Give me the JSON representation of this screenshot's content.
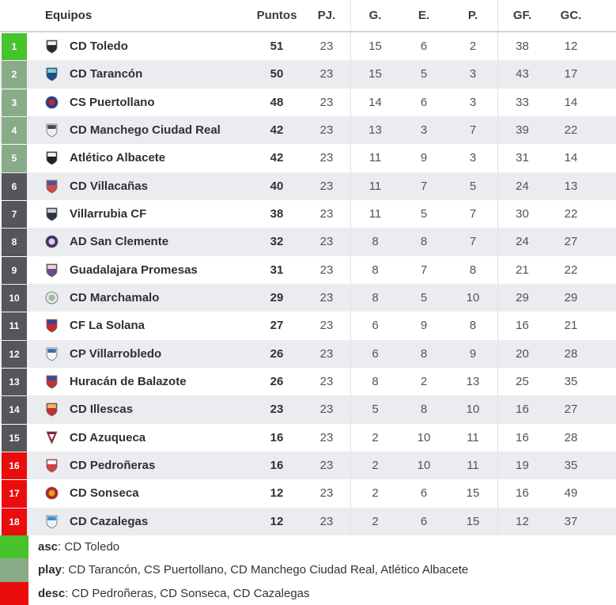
{
  "header": {
    "equipos": "Equipos",
    "puntos": "Puntos",
    "pj": "PJ.",
    "g": "G.",
    "e": "E.",
    "p": "P.",
    "gf": "GF.",
    "gc": "GC."
  },
  "colors": {
    "asc": "#47c32d",
    "play": "#8aab88",
    "mid": "#55555b",
    "desc": "#eb0d0e",
    "row_alt": "#ebecef",
    "border": "#e2e2e6"
  },
  "rows": [
    {
      "pos": 1,
      "team": "CD Toledo",
      "zone": "asc",
      "icon": {
        "shape": "shield",
        "c1": "#2b2b2b",
        "c2": "#f2f2f2"
      },
      "puntos": 51,
      "pj": 23,
      "g": 15,
      "e": 6,
      "p": 2,
      "gf": 38,
      "gc": 12
    },
    {
      "pos": 2,
      "team": "CD Tarancón",
      "zone": "play",
      "icon": {
        "shape": "shield",
        "c1": "#1d4e89",
        "c2": "#7fd1c8"
      },
      "puntos": 50,
      "pj": 23,
      "g": 15,
      "e": 5,
      "p": 3,
      "gf": 43,
      "gc": 17
    },
    {
      "pos": 3,
      "team": "CS Puertollano",
      "zone": "play",
      "icon": {
        "shape": "circle",
        "c1": "#1d3f8f",
        "c2": "#c42430"
      },
      "puntos": 48,
      "pj": 23,
      "g": 14,
      "e": 6,
      "p": 3,
      "gf": 33,
      "gc": 14
    },
    {
      "pos": 4,
      "team": "CD Manchego Ciudad Real",
      "zone": "play",
      "icon": {
        "shape": "shield",
        "c1": "#eef0f2",
        "c2": "#4a4a52"
      },
      "puntos": 42,
      "pj": 23,
      "g": 13,
      "e": 3,
      "p": 7,
      "gf": 39,
      "gc": 22
    },
    {
      "pos": 5,
      "team": "Atlético Albacete",
      "zone": "play",
      "icon": {
        "shape": "shield",
        "c1": "#222222",
        "c2": "#f5f5f5"
      },
      "puntos": 42,
      "pj": 23,
      "g": 11,
      "e": 9,
      "p": 3,
      "gf": 31,
      "gc": 14
    },
    {
      "pos": 6,
      "team": "CD Villacañas",
      "zone": "mid",
      "icon": {
        "shape": "shield",
        "c1": "#d04848",
        "c2": "#3c55a5"
      },
      "puntos": 40,
      "pj": 23,
      "g": 11,
      "e": 7,
      "p": 5,
      "gf": 24,
      "gc": 13
    },
    {
      "pos": 7,
      "team": "Villarrubia CF",
      "zone": "mid",
      "icon": {
        "shape": "shield",
        "c1": "#2e3440",
        "c2": "#cfd4dc"
      },
      "puntos": 38,
      "pj": 23,
      "g": 11,
      "e": 5,
      "p": 7,
      "gf": 30,
      "gc": 22
    },
    {
      "pos": 8,
      "team": "AD San Clemente",
      "zone": "mid",
      "icon": {
        "shape": "circle",
        "c1": "#4a2a6b",
        "c2": "#d8cfe8"
      },
      "puntos": 32,
      "pj": 23,
      "g": 8,
      "e": 8,
      "p": 7,
      "gf": 24,
      "gc": 27
    },
    {
      "pos": 9,
      "team": "Guadalajara Promesas",
      "zone": "mid",
      "icon": {
        "shape": "shield",
        "c1": "#6a4a8c",
        "c2": "#e9e0cf"
      },
      "puntos": 31,
      "pj": 23,
      "g": 8,
      "e": 7,
      "p": 8,
      "gf": 21,
      "gc": 22
    },
    {
      "pos": 10,
      "team": "CD Marchamalo",
      "zone": "mid",
      "icon": {
        "shape": "circle",
        "c1": "#e3e8e3",
        "c2": "#9fb8a0"
      },
      "puntos": 29,
      "pj": 23,
      "g": 8,
      "e": 5,
      "p": 10,
      "gf": 29,
      "gc": 29
    },
    {
      "pos": 11,
      "team": "CF La Solana",
      "zone": "mid",
      "icon": {
        "shape": "shield",
        "c1": "#cc2626",
        "c2": "#2a47a8"
      },
      "puntos": 27,
      "pj": 23,
      "g": 6,
      "e": 9,
      "p": 8,
      "gf": 16,
      "gc": 21
    },
    {
      "pos": 12,
      "team": "CP Villarrobledo",
      "zone": "mid",
      "icon": {
        "shape": "shield",
        "c1": "#f4f6f8",
        "c2": "#3a6ab0"
      },
      "puntos": 26,
      "pj": 23,
      "g": 6,
      "e": 8,
      "p": 9,
      "gf": 20,
      "gc": 28
    },
    {
      "pos": 13,
      "team": "Huracán de Balazote",
      "zone": "mid",
      "icon": {
        "shape": "shield",
        "c1": "#c23232",
        "c2": "#2a4ea0"
      },
      "puntos": 26,
      "pj": 23,
      "g": 8,
      "e": 2,
      "p": 13,
      "gf": 25,
      "gc": 35
    },
    {
      "pos": 14,
      "team": "CD Illescas",
      "zone": "mid",
      "icon": {
        "shape": "shield",
        "c1": "#c03030",
        "c2": "#e8c060"
      },
      "puntos": 23,
      "pj": 23,
      "g": 5,
      "e": 8,
      "p": 10,
      "gf": 16,
      "gc": 27
    },
    {
      "pos": 15,
      "team": "CD Azuqueca",
      "zone": "mid",
      "icon": {
        "shape": "triangle",
        "c1": "#8c1a2a",
        "c2": "#ffffff"
      },
      "puntos": 16,
      "pj": 23,
      "g": 2,
      "e": 10,
      "p": 11,
      "gf": 16,
      "gc": 28
    },
    {
      "pos": 16,
      "team": "CD Pedroñeras",
      "zone": "desc",
      "icon": {
        "shape": "shield",
        "c1": "#d24040",
        "c2": "#ffffff"
      },
      "puntos": 16,
      "pj": 23,
      "g": 2,
      "e": 10,
      "p": 11,
      "gf": 19,
      "gc": 35
    },
    {
      "pos": 17,
      "team": "CD Sonseca",
      "zone": "desc",
      "icon": {
        "shape": "circle",
        "c1": "#c02020",
        "c2": "#e0a020"
      },
      "puntos": 12,
      "pj": 23,
      "g": 2,
      "e": 6,
      "p": 15,
      "gf": 16,
      "gc": 49
    },
    {
      "pos": 18,
      "team": "CD Cazalegas",
      "zone": "desc",
      "icon": {
        "shape": "shield",
        "c1": "#eaf2fa",
        "c2": "#3a8fd0"
      },
      "puntos": 12,
      "pj": 23,
      "g": 2,
      "e": 6,
      "p": 15,
      "gf": 12,
      "gc": 37
    }
  ],
  "legend": [
    {
      "label": "asc",
      "zone": "asc",
      "sep": ": ",
      "teams": "CD Toledo"
    },
    {
      "label": "play",
      "zone": "play",
      "sep": ": ",
      "teams": "CD Tarancón, CS Puertollano, CD Manchego Ciudad Real, Atlético Albacete"
    },
    {
      "label": "desc",
      "zone": "desc",
      "sep": ": ",
      "teams": "CD Pedroñeras, CD Sonseca, CD Cazalegas"
    }
  ]
}
